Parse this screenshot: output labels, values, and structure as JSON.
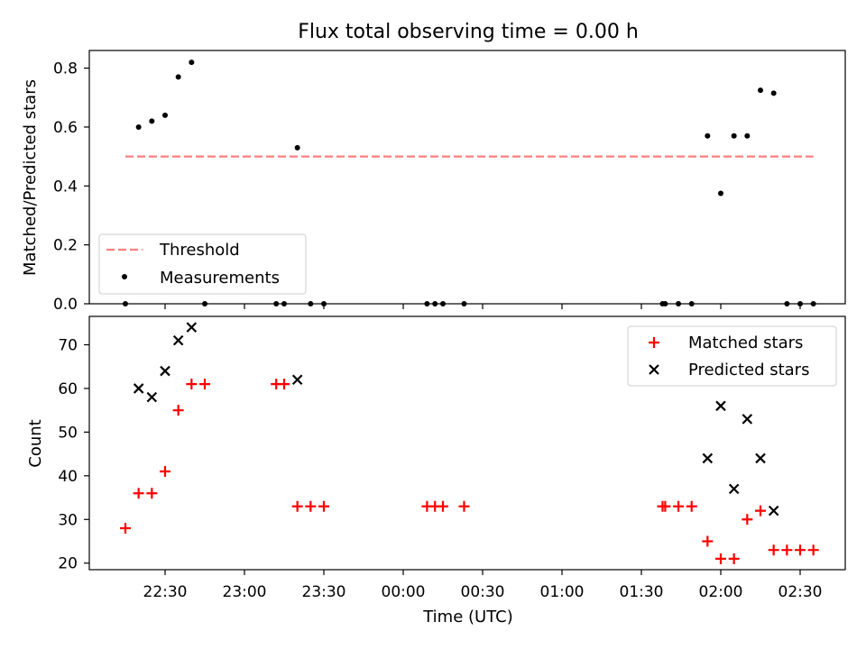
{
  "title": "Flux total observing time = 0.00 h",
  "colors": {
    "threshold": "#ff7f7f",
    "measurement": "#000000",
    "matched": "#ff0000",
    "predicted": "#000000"
  },
  "chart_data": [
    {
      "type": "scatter",
      "ylabel": "Matched/Predicted stars",
      "ylim": [
        0,
        0.86
      ],
      "yticks": [
        "0.0",
        "0.2",
        "0.4",
        "0.6",
        "0.8"
      ],
      "legend": {
        "position": "lower-left",
        "entries": [
          "Threshold",
          "Measurements"
        ]
      },
      "threshold": {
        "name": "Threshold",
        "y": 0.5,
        "x_start": "22:15",
        "x_end": "02:35"
      },
      "series": [
        {
          "name": "Measurements",
          "x": [
            "22:15",
            "22:20",
            "22:25",
            "22:30",
            "22:35",
            "22:40",
            "22:45",
            "23:12",
            "23:15",
            "23:20",
            "23:25",
            "23:30",
            "00:09",
            "00:12",
            "00:15",
            "00:23",
            "01:38",
            "01:39",
            "01:44",
            "01:49",
            "01:55",
            "02:00",
            "02:05",
            "02:10",
            "02:15",
            "02:20",
            "02:25",
            "02:30",
            "02:35"
          ],
          "y": [
            0.0,
            0.6,
            0.62,
            0.64,
            0.77,
            0.82,
            0.0,
            0.0,
            0.0,
            0.53,
            0.0,
            0.0,
            0.0,
            0.0,
            0.0,
            0.0,
            0.0,
            0.0,
            0.0,
            0.0,
            0.57,
            0.375,
            0.57,
            0.57,
            0.725,
            0.715,
            0.0,
            0.0,
            0.0
          ]
        }
      ]
    },
    {
      "type": "scatter",
      "xlabel": "Time (UTC)",
      "ylabel": "Count",
      "ylim": [
        18.5,
        76.5
      ],
      "yticks": [
        "20",
        "30",
        "40",
        "50",
        "60",
        "70"
      ],
      "xticks": [
        "22:30",
        "23:00",
        "23:30",
        "00:00",
        "00:30",
        "01:00",
        "01:30",
        "02:00",
        "02:30"
      ],
      "legend": {
        "position": "upper-right",
        "entries": [
          "Matched stars",
          "Predicted stars"
        ]
      },
      "series": [
        {
          "name": "Matched stars",
          "x": [
            "22:15",
            "22:20",
            "22:25",
            "22:30",
            "22:35",
            "22:40",
            "22:45",
            "23:12",
            "23:15",
            "23:20",
            "23:25",
            "23:30",
            "00:09",
            "00:12",
            "00:15",
            "00:23",
            "01:38",
            "01:39",
            "01:44",
            "01:49",
            "01:55",
            "02:00",
            "02:05",
            "02:10",
            "02:15",
            "02:20",
            "02:25",
            "02:30",
            "02:35"
          ],
          "y": [
            28,
            36,
            36,
            41,
            55,
            61,
            61,
            61,
            61,
            33,
            33,
            33,
            33,
            33,
            33,
            33,
            33,
            33,
            33,
            33,
            25,
            21,
            21,
            30,
            32,
            23,
            23,
            23,
            23
          ]
        },
        {
          "name": "Predicted stars",
          "x": [
            "22:20",
            "22:25",
            "22:30",
            "22:35",
            "22:40",
            "23:20",
            "01:55",
            "02:00",
            "02:05",
            "02:10",
            "02:15",
            "02:20"
          ],
          "y": [
            60,
            58,
            64,
            71,
            74,
            62,
            44,
            56,
            37,
            53,
            44,
            32
          ]
        }
      ]
    }
  ]
}
